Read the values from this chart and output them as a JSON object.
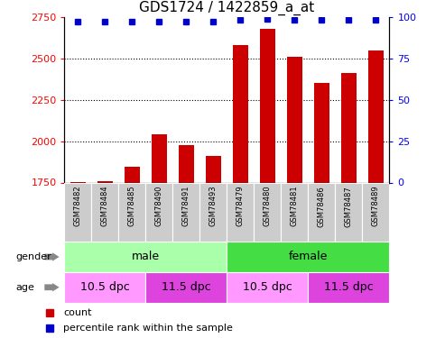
{
  "title": "GDS1724 / 1422859_a_at",
  "samples": [
    "GSM78482",
    "GSM78484",
    "GSM78485",
    "GSM78490",
    "GSM78491",
    "GSM78493",
    "GSM78479",
    "GSM78480",
    "GSM78481",
    "GSM78486",
    "GSM78487",
    "GSM78489"
  ],
  "counts": [
    1755,
    1758,
    1845,
    2040,
    1975,
    1910,
    2580,
    2680,
    2510,
    2350,
    2410,
    2545
  ],
  "percentile_ranks": [
    97,
    97,
    97,
    97,
    97,
    97,
    98,
    99,
    98,
    98,
    98,
    98
  ],
  "ylim_left": [
    1750,
    2750
  ],
  "ylim_right": [
    0,
    100
  ],
  "yticks_left": [
    1750,
    2000,
    2250,
    2500,
    2750
  ],
  "yticks_right": [
    0,
    25,
    50,
    75,
    100
  ],
  "grid_lines": [
    2000,
    2250,
    2500
  ],
  "bar_color": "#cc0000",
  "dot_color": "#0000cc",
  "sample_box_color": "#cccccc",
  "gender_groups": [
    {
      "label": "male",
      "start": 0,
      "end": 6,
      "color": "#aaffaa"
    },
    {
      "label": "female",
      "start": 6,
      "end": 12,
      "color": "#44dd44"
    }
  ],
  "age_groups": [
    {
      "label": "10.5 dpc",
      "start": 0,
      "end": 3,
      "color": "#ff99ff"
    },
    {
      "label": "11.5 dpc",
      "start": 3,
      "end": 6,
      "color": "#dd44dd"
    },
    {
      "label": "10.5 dpc",
      "start": 6,
      "end": 9,
      "color": "#ff99ff"
    },
    {
      "label": "11.5 dpc",
      "start": 9,
      "end": 12,
      "color": "#dd44dd"
    }
  ],
  "legend_items": [
    {
      "label": "count",
      "color": "#cc0000"
    },
    {
      "label": "percentile rank within the sample",
      "color": "#0000cc"
    }
  ],
  "fig_width": 4.93,
  "fig_height": 3.75,
  "fig_dpi": 100
}
